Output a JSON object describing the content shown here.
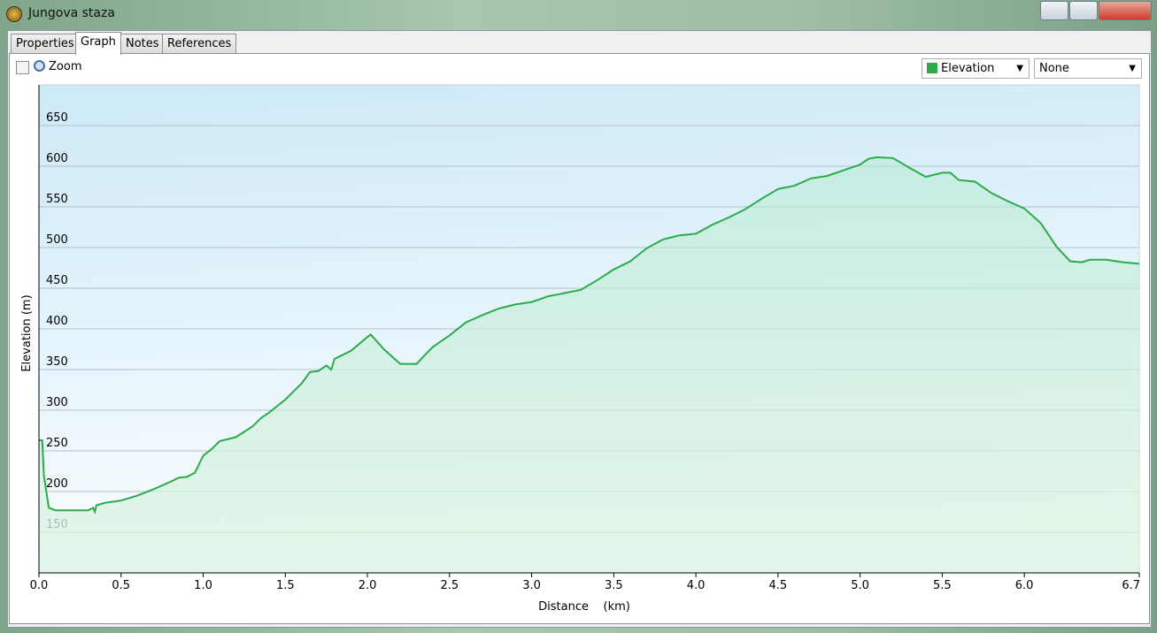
{
  "window": {
    "title": "Jungova staza"
  },
  "tabs": [
    "Properties",
    "Graph",
    "Notes",
    "References"
  ],
  "toolbar": {
    "zoom_label": "Zoom",
    "second_select": "None"
  },
  "chart_data": {
    "type": "line",
    "x_label": "Distance    (km)",
    "y_label": "Elevation (m)",
    "x": [
      0,
      0.02,
      0.03,
      0.06,
      0.1,
      0.3,
      0.33,
      0.34,
      0.35,
      0.4,
      0.5,
      0.6,
      0.7,
      0.8,
      0.85,
      0.9,
      0.95,
      1.0,
      1.05,
      1.1,
      1.2,
      1.3,
      1.35,
      1.4,
      1.5,
      1.6,
      1.65,
      1.7,
      1.75,
      1.78,
      1.8,
      1.9,
      2.0,
      2.02,
      2.1,
      2.2,
      2.3,
      2.35,
      2.4,
      2.5,
      2.6,
      2.7,
      2.8,
      2.9,
      3.0,
      3.1,
      3.2,
      3.3,
      3.4,
      3.5,
      3.6,
      3.7,
      3.8,
      3.9,
      4.0,
      4.1,
      4.2,
      4.3,
      4.4,
      4.5,
      4.6,
      4.7,
      4.8,
      4.9,
      5.0,
      5.05,
      5.1,
      5.2,
      5.3,
      5.4,
      5.5,
      5.55,
      5.6,
      5.7,
      5.8,
      5.9,
      6.0,
      6.1,
      6.2,
      6.28,
      6.35,
      6.4,
      6.5,
      6.6,
      6.7
    ],
    "series": [
      {
        "name": "Elevation",
        "color": "#2bab4a",
        "values": [
          263,
          263,
          220,
          180,
          177,
          177,
          180,
          175,
          183,
          186,
          189,
          195,
          203,
          212,
          217,
          218,
          223,
          244,
          252,
          262,
          267,
          280,
          290,
          297,
          313,
          333,
          347,
          348,
          355,
          350,
          363,
          373,
          390,
          393,
          375,
          357,
          357,
          368,
          378,
          392,
          408,
          417,
          425,
          430,
          433,
          440,
          444,
          448,
          460,
          473,
          483,
          499,
          510,
          515,
          517,
          528,
          537,
          547,
          560,
          572,
          576,
          585,
          588,
          595,
          602,
          609,
          611,
          610,
          598,
          587,
          592,
          592,
          583,
          581,
          567,
          557,
          548,
          530,
          500,
          483,
          482,
          485,
          485,
          482,
          480
        ]
      }
    ],
    "xlim": [
      0,
      6.7
    ],
    "ylim": [
      100,
      700
    ],
    "xticks": [
      {
        "value": 0,
        "label": "0.0"
      },
      0.5,
      {
        "value": 1,
        "label": "1.0"
      },
      1.5,
      {
        "value": 2,
        "label": "2.0"
      },
      2.5,
      {
        "value": 3,
        "label": "3.0"
      },
      3.5,
      {
        "value": 4,
        "label": "4.0"
      },
      4.5,
      {
        "value": 5,
        "label": "5.0"
      },
      5.5,
      {
        "value": 6,
        "label": "6.0"
      },
      6.7
    ],
    "yticks": [
      150,
      200,
      250,
      300,
      350,
      400,
      450,
      500,
      550,
      600,
      650
    ],
    "grid": true
  }
}
